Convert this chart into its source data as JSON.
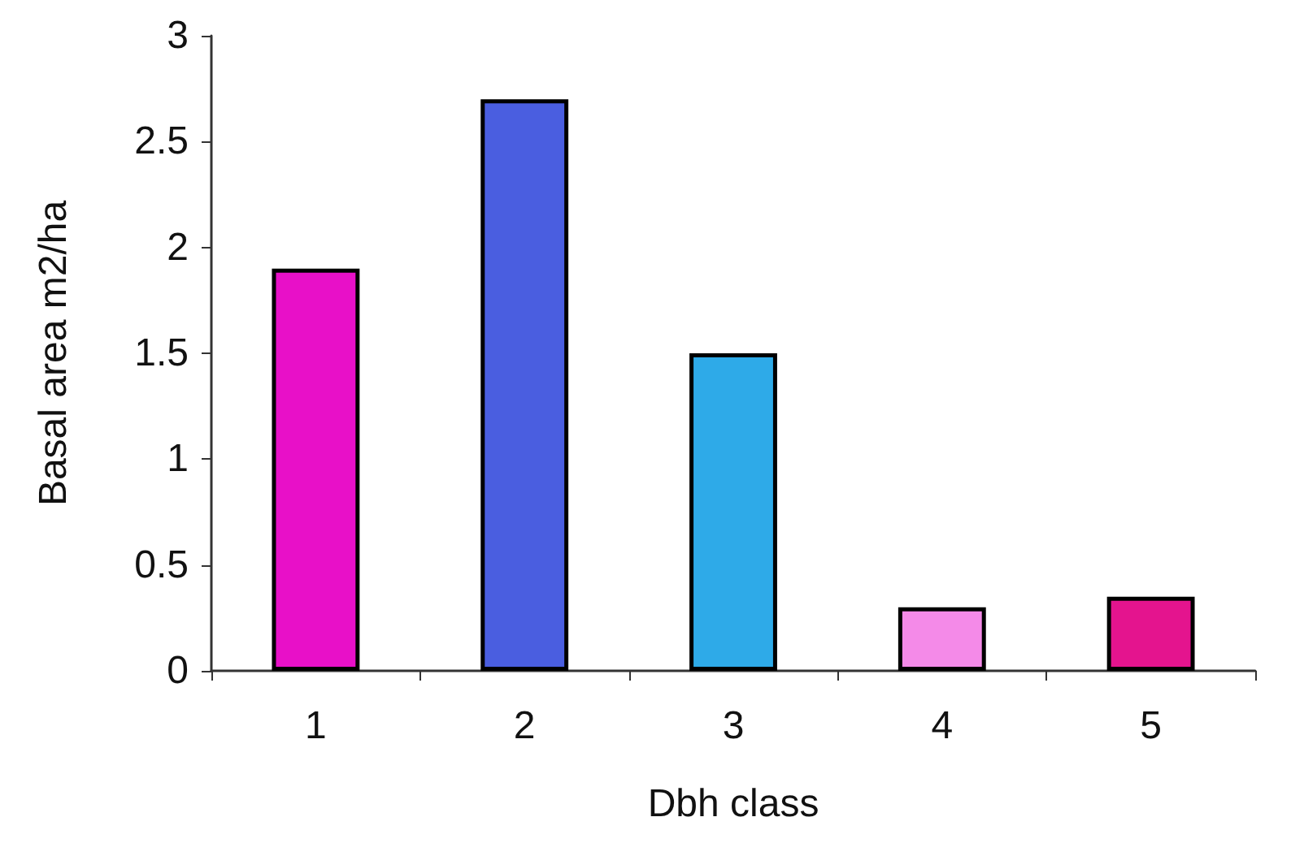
{
  "chart_data": {
    "type": "bar",
    "xlabel": "Dbh class",
    "ylabel": "Basal area m2/ha",
    "categories": [
      "1",
      "2",
      "3",
      "4",
      "5"
    ],
    "values": [
      1.9,
      2.7,
      1.5,
      0.3,
      0.35
    ],
    "colors": [
      "#e810c8",
      "#4a5ee0",
      "#2eaae8",
      "#f48ae8",
      "#e4148e"
    ],
    "ylim": [
      0,
      3
    ],
    "yticks": [
      0,
      0.5,
      1,
      1.5,
      2,
      2.5,
      3
    ],
    "grid": false
  }
}
